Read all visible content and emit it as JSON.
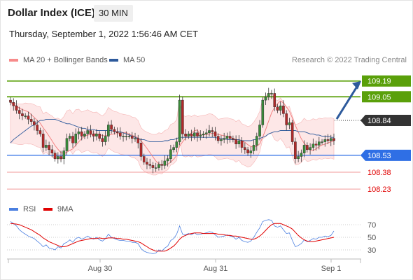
{
  "header": {
    "title": "Dollar Index (ICE)",
    "timeframe": "30 MIN",
    "datetime": "Thursday, September 1, 2022 1:56:46 AM CET"
  },
  "legend": {
    "bollinger": {
      "label": "MA 20 + Bollinger Bands",
      "color": "#f78b8b"
    },
    "ma50": {
      "label": "MA 50",
      "color": "#2d5a9c"
    },
    "rsi": {
      "label": "RSI",
      "color": "#4a7fe0"
    },
    "rsi_ma": {
      "label": "9MA",
      "color": "#e00000"
    }
  },
  "credit": "Research © 2022 Trading Central",
  "chart_data": [
    {
      "type": "candlestick",
      "title": "Dollar Index (ICE)",
      "timeframe": "30 MIN",
      "ylim": [
        108.15,
        109.35
      ],
      "x_ticks": [
        "Aug 30",
        "Aug 31",
        "Sep 1"
      ],
      "closes": [
        109.0,
        108.97,
        108.93,
        108.9,
        108.88,
        108.88,
        108.85,
        108.83,
        108.8,
        108.75,
        108.72,
        108.6,
        108.62,
        108.58,
        108.55,
        108.5,
        108.52,
        108.5,
        108.57,
        108.68,
        108.7,
        108.64,
        108.72,
        108.74,
        108.7,
        108.72,
        108.75,
        108.72,
        108.7,
        108.72,
        108.68,
        108.65,
        108.7,
        108.8,
        108.76,
        108.74,
        108.73,
        108.7,
        108.7,
        108.7,
        108.7,
        108.68,
        108.68,
        108.64,
        108.52,
        108.47,
        108.45,
        108.44,
        108.42,
        108.42,
        108.45,
        108.44,
        108.48,
        108.5,
        108.58,
        108.6,
        108.65,
        109.02,
        108.72,
        108.7,
        108.72,
        108.7,
        108.73,
        108.7,
        108.71,
        108.72,
        108.73,
        108.75,
        108.74,
        108.7,
        108.66,
        108.67,
        108.68,
        108.7,
        108.68,
        108.67,
        108.63,
        108.66,
        108.6,
        108.58,
        108.55,
        108.57,
        108.62,
        108.7,
        108.8,
        109.02,
        109.05,
        109.08,
        109.08,
        108.96,
        108.93,
        108.97,
        108.9,
        108.8,
        108.82,
        108.65,
        108.5,
        108.52,
        108.55,
        108.62,
        108.58,
        108.6,
        108.63,
        108.62,
        108.65,
        108.65,
        108.67,
        108.66,
        108.68,
        108.66
      ],
      "ma50": [
        108.64,
        108.67,
        108.69,
        108.71,
        108.73,
        108.75,
        108.77,
        108.79,
        108.8,
        108.82,
        108.84,
        108.84,
        108.85,
        108.85,
        108.85,
        108.85,
        108.84,
        108.83,
        108.82,
        108.81,
        108.81,
        108.8,
        108.79,
        108.78,
        108.77,
        108.77,
        108.76,
        108.76,
        108.76,
        108.75,
        108.75,
        108.75,
        108.75,
        108.75,
        108.75,
        108.74,
        108.74,
        108.74,
        108.73,
        108.72,
        108.71,
        108.7,
        108.69,
        108.68,
        108.67,
        108.67,
        108.66,
        108.65,
        108.65,
        108.65,
        108.65,
        108.65,
        108.66,
        108.66,
        108.67,
        108.67,
        108.68,
        108.69,
        108.69,
        108.69,
        108.69,
        108.69,
        108.69,
        108.69,
        108.69,
        108.69,
        108.69,
        108.69,
        108.69,
        108.69,
        108.68,
        108.68,
        108.68,
        108.67,
        108.67,
        108.67,
        108.67,
        108.67,
        108.66,
        108.66,
        108.66,
        108.66,
        108.67,
        108.67,
        108.68,
        108.69,
        108.7,
        108.72,
        108.73,
        108.74,
        108.74,
        108.75,
        108.75,
        108.75,
        108.75,
        108.75,
        108.75,
        108.74,
        108.74,
        108.74,
        108.73,
        108.72,
        108.72,
        108.71,
        108.71,
        108.7,
        108.7,
        108.7,
        108.69,
        108.69
      ],
      "bollinger_width": 0.18,
      "horizontal_levels": [
        {
          "value": 109.19,
          "label": "109.19",
          "role": "resistance",
          "color": "#5aa00a"
        },
        {
          "value": 109.05,
          "label": "109.05",
          "role": "resistance",
          "color": "#5aa00a"
        },
        {
          "value": 108.84,
          "label": "108.84",
          "role": "last",
          "color": "#333333"
        },
        {
          "value": 108.53,
          "label": "108.53",
          "role": "pivot",
          "color": "#2f6fe5"
        },
        {
          "value": 108.38,
          "label": "108.38",
          "role": "support",
          "color": "#e00000"
        },
        {
          "value": 108.23,
          "label": "108.23",
          "role": "support",
          "color": "#e00000"
        }
      ],
      "projection": {
        "direction": "up",
        "target": 109.19
      }
    },
    {
      "type": "line",
      "title": "RSI",
      "ylim": [
        20,
        80
      ],
      "y_ticks": [
        70,
        50,
        30
      ],
      "series": [
        {
          "name": "RSI",
          "values": [
            75,
            72,
            68,
            62,
            58,
            55,
            52,
            50,
            48,
            44,
            40,
            35,
            38,
            33,
            32,
            30,
            35,
            33,
            40,
            42,
            46,
            42,
            48,
            50,
            47,
            49,
            52,
            49,
            47,
            50,
            46,
            44,
            48,
            55,
            50,
            48,
            46,
            45,
            45,
            44,
            44,
            42,
            42,
            40,
            32,
            28,
            26,
            25,
            24,
            25,
            30,
            28,
            33,
            36,
            45,
            48,
            55,
            68,
            55,
            54,
            56,
            54,
            57,
            54,
            55,
            56,
            57,
            59,
            58,
            54,
            50,
            51,
            52,
            54,
            52,
            51,
            47,
            50,
            45,
            43,
            42,
            44,
            50,
            58,
            65,
            75,
            77,
            78,
            77,
            68,
            66,
            68,
            62,
            56,
            57,
            45,
            35,
            37,
            40,
            46,
            43,
            45,
            48,
            47,
            50,
            50,
            52,
            51,
            53,
            60
          ]
        },
        {
          "name": "9MA",
          "values": [
            72,
            71.5,
            71,
            70,
            68,
            66,
            64,
            62,
            59,
            56,
            53,
            49,
            46,
            43,
            41,
            39,
            37,
            35,
            35,
            36,
            38,
            40,
            42,
            44,
            45,
            46,
            47,
            48,
            48,
            48,
            49,
            48,
            48,
            49,
            49,
            49,
            48,
            48,
            47,
            47,
            46,
            45,
            44,
            43,
            41,
            38,
            35,
            32,
            30,
            28,
            28,
            28,
            28,
            30,
            33,
            36,
            41,
            47,
            51,
            53,
            55,
            56,
            57,
            57,
            57,
            56,
            56,
            56,
            56,
            56,
            55,
            55,
            54,
            53,
            53,
            52,
            52,
            51,
            50,
            49,
            48,
            47,
            47,
            49,
            52,
            56,
            61,
            66,
            70,
            72,
            72,
            72,
            70,
            68,
            66,
            63,
            58,
            53,
            49,
            46,
            44,
            43,
            43,
            44,
            45,
            46,
            47,
            48,
            49,
            50
          ]
        }
      ]
    }
  ]
}
